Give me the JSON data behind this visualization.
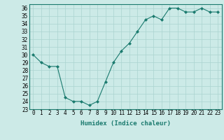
{
  "x": [
    0,
    1,
    2,
    3,
    4,
    5,
    6,
    7,
    8,
    9,
    10,
    11,
    12,
    13,
    14,
    15,
    16,
    17,
    18,
    19,
    20,
    21,
    22,
    23
  ],
  "y": [
    30.0,
    29.0,
    28.5,
    28.5,
    24.5,
    24.0,
    24.0,
    23.5,
    24.0,
    26.5,
    29.0,
    30.5,
    31.5,
    33.0,
    34.5,
    35.0,
    34.5,
    36.0,
    36.0,
    35.5,
    35.5,
    36.0,
    35.5,
    35.5
  ],
  "line_color": "#1a7a6e",
  "marker": "D",
  "marker_size": 2,
  "bg_color": "#cceae7",
  "grid_color": "#aad4d0",
  "xlabel": "Humidex (Indice chaleur)",
  "ylim": [
    23,
    36.5
  ],
  "xlim": [
    -0.5,
    23.5
  ],
  "yticks": [
    23,
    24,
    25,
    26,
    27,
    28,
    29,
    30,
    31,
    32,
    33,
    34,
    35,
    36
  ],
  "xticks": [
    0,
    1,
    2,
    3,
    4,
    5,
    6,
    7,
    8,
    9,
    10,
    11,
    12,
    13,
    14,
    15,
    16,
    17,
    18,
    19,
    20,
    21,
    22,
    23
  ],
  "tick_fontsize": 5.5,
  "xlabel_fontsize": 6.5
}
